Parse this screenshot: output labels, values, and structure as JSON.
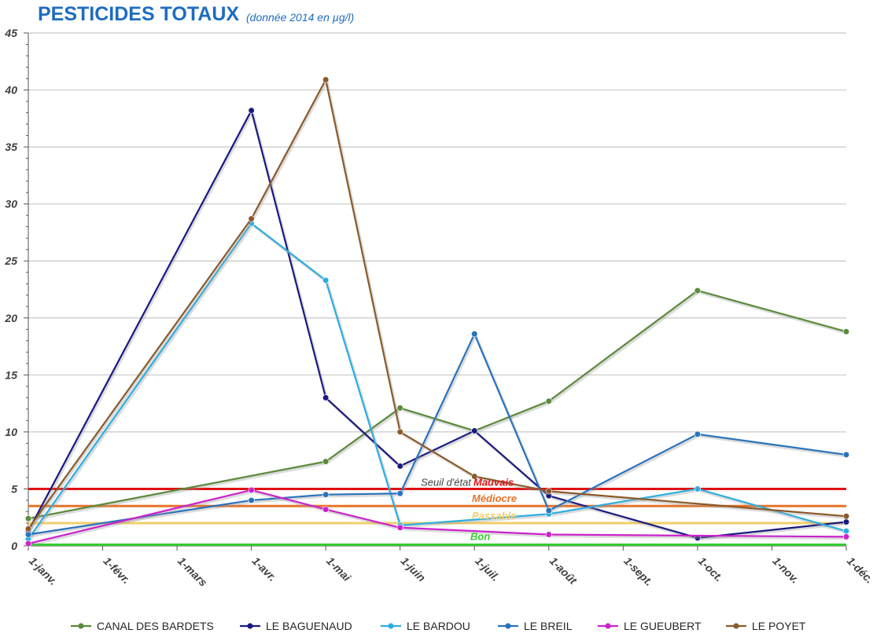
{
  "chart_data": {
    "type": "line",
    "title": "PESTICIDES TOTAUX",
    "subtitle": "(donnée 2014 en µg/l)",
    "ylim": [
      0,
      45
    ],
    "yticks": [
      0,
      5,
      10,
      15,
      20,
      25,
      30,
      35,
      40,
      45
    ],
    "x_categories": [
      "1-janv.",
      "1-févr.",
      "1-mars",
      "1-avr.",
      "1-mai",
      "1-juin",
      "1-juil.",
      "1-août",
      "1-sept.",
      "1-oct.",
      "1-nov.",
      "1-déc."
    ],
    "grid": true,
    "legend_position": "bottom",
    "series": [
      {
        "name": "CANAL DES BARDETS",
        "color": "#5b8a3c",
        "points": [
          [
            0,
            2.4
          ],
          [
            4,
            7.4
          ],
          [
            5,
            12.1
          ],
          [
            6,
            10.1
          ],
          [
            7,
            12.7
          ],
          [
            9,
            22.4
          ],
          [
            11,
            18.8
          ]
        ]
      },
      {
        "name": "LE BAGUENAUD",
        "color": "#1a1a80",
        "points": [
          [
            0,
            1.3
          ],
          [
            3,
            38.2
          ],
          [
            4,
            13.0
          ],
          [
            5,
            7.0
          ],
          [
            6,
            10.1
          ],
          [
            7,
            4.4
          ],
          [
            9,
            0.7
          ],
          [
            11,
            2.1
          ]
        ]
      },
      {
        "name": "LE BARDOU",
        "color": "#2eaee0",
        "points": [
          [
            0,
            0.6
          ],
          [
            3,
            28.3
          ],
          [
            4,
            23.3
          ],
          [
            5,
            1.8
          ],
          [
            7,
            2.8
          ],
          [
            9,
            5.0
          ],
          [
            11,
            1.3
          ]
        ]
      },
      {
        "name": "LE BREIL",
        "color": "#2a73bb",
        "points": [
          [
            0,
            1.0
          ],
          [
            3,
            4.0
          ],
          [
            4,
            4.5
          ],
          [
            5,
            4.6
          ],
          [
            6,
            18.6
          ],
          [
            7,
            3.1
          ],
          [
            9,
            9.8
          ],
          [
            11,
            8.0
          ]
        ]
      },
      {
        "name": "LE GUEUBERT",
        "color": "#cc22cc",
        "points": [
          [
            0,
            0.2
          ],
          [
            3,
            4.9
          ],
          [
            4,
            3.2
          ],
          [
            5,
            1.6
          ],
          [
            7,
            1.0
          ],
          [
            11,
            0.8
          ]
        ]
      },
      {
        "name": "LE POYET",
        "color": "#8b5a2b",
        "points": [
          [
            0,
            1.5
          ],
          [
            3,
            28.7
          ],
          [
            4,
            40.9
          ],
          [
            5,
            10.0
          ],
          [
            6,
            6.1
          ],
          [
            7,
            4.8
          ],
          [
            11,
            2.6
          ]
        ]
      }
    ],
    "thresholds": [
      {
        "label": "Mauvais",
        "value": 5.0,
        "color": "#e01010"
      },
      {
        "label": "Médiocre",
        "value": 3.5,
        "color": "#e8732a"
      },
      {
        "label": "Passable",
        "value": 2.0,
        "color": "#f2cf6a"
      },
      {
        "label": "Bon",
        "value": 0.1,
        "color": "#33cc33"
      }
    ],
    "threshold_caption": "Seuil d'état"
  }
}
